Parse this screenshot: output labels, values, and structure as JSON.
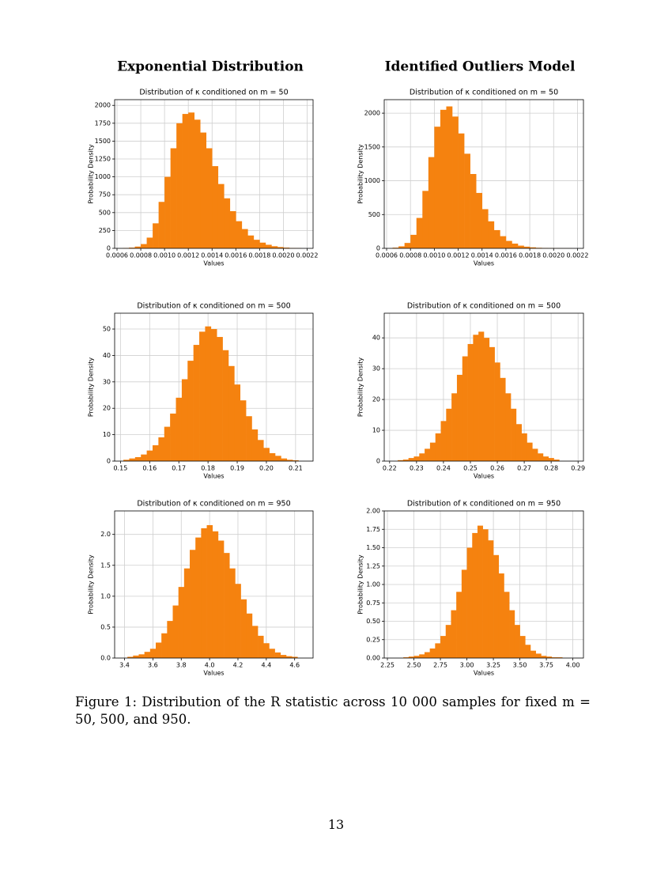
{
  "headings": [
    "Exponential Distribution",
    "Identified Outliers Model"
  ],
  "chart_data": [
    {
      "type": "histogram",
      "title": "Distribution of κ conditioned on m = 50",
      "x_label": "Values",
      "y_label": "Probability Density",
      "color": "#f5820f",
      "grid": true,
      "bins": [
        0.00065,
        0.0007,
        0.00075,
        0.0008,
        0.00085,
        0.0009,
        0.00095,
        0.001,
        0.00105,
        0.0011,
        0.00115,
        0.0012,
        0.00125,
        0.0013,
        0.00135,
        0.0014,
        0.00145,
        0.0015,
        0.00155,
        0.0016,
        0.00165,
        0.0017,
        0.00175,
        0.0018,
        0.00185,
        0.0019,
        0.00195,
        0.002,
        0.00205,
        0.0021,
        0.00215
      ],
      "values": [
        5,
        10,
        25,
        60,
        150,
        350,
        650,
        1000,
        1400,
        1750,
        1880,
        1900,
        1800,
        1620,
        1400,
        1150,
        900,
        700,
        520,
        380,
        270,
        180,
        120,
        80,
        50,
        30,
        18,
        10,
        5,
        3
      ],
      "xlim": [
        0.00058,
        0.00225
      ],
      "ylim": [
        0,
        2080
      ],
      "xticks": [
        0.0006,
        0.0008,
        {
          "value": 0.001,
          "label": "0.0010"
        },
        0.0012,
        0.0014,
        0.0016,
        0.0018,
        {
          "value": 0.002,
          "label": "0.0020"
        },
        0.0022
      ],
      "yticks": [
        0,
        250,
        500,
        750,
        1000,
        1250,
        1500,
        1750,
        2000
      ]
    },
    {
      "type": "histogram",
      "title": "Distribution of κ conditioned on m = 50",
      "x_label": "Values",
      "y_label": "Probability Density",
      "color": "#f5820f",
      "grid": true,
      "bins": [
        0.00065,
        0.0007,
        0.00075,
        0.0008,
        0.00085,
        0.0009,
        0.00095,
        0.001,
        0.00105,
        0.0011,
        0.00115,
        0.0012,
        0.00125,
        0.0013,
        0.00135,
        0.0014,
        0.00145,
        0.0015,
        0.00155,
        0.0016,
        0.00165,
        0.0017,
        0.00175,
        0.0018,
        0.00185,
        0.0019,
        0.00195,
        0.002,
        0.00205,
        0.0021,
        0.00215
      ],
      "values": [
        10,
        30,
        80,
        200,
        450,
        850,
        1350,
        1800,
        2050,
        2100,
        1950,
        1700,
        1400,
        1100,
        820,
        580,
        400,
        270,
        180,
        110,
        70,
        40,
        25,
        15,
        8,
        5,
        3,
        2,
        1,
        1
      ],
      "xlim": [
        0.00058,
        0.00225
      ],
      "ylim": [
        0,
        2200
      ],
      "xticks": [
        0.0006,
        0.0008,
        {
          "value": 0.001,
          "label": "0.0010"
        },
        0.0012,
        0.0014,
        0.0016,
        0.0018,
        {
          "value": 0.002,
          "label": "0.0020"
        },
        0.0022
      ],
      "yticks": [
        0,
        500,
        1000,
        1500,
        2000
      ]
    },
    {
      "type": "histogram",
      "title": "Distribution of κ conditioned on m = 500",
      "x_label": "Values",
      "y_label": "Probability Density",
      "color": "#f5820f",
      "grid": true,
      "bins": [
        0.151,
        0.153,
        0.155,
        0.157,
        0.159,
        0.161,
        0.163,
        0.165,
        0.167,
        0.169,
        0.171,
        0.173,
        0.175,
        0.177,
        0.179,
        0.181,
        0.183,
        0.185,
        0.187,
        0.189,
        0.191,
        0.193,
        0.195,
        0.197,
        0.199,
        0.201,
        0.203,
        0.205,
        0.207,
        0.209,
        0.211
      ],
      "values": [
        0.5,
        1,
        1.5,
        2.5,
        4,
        6,
        9,
        13,
        18,
        24,
        31,
        38,
        44,
        49,
        51,
        50,
        47,
        42,
        36,
        29,
        23,
        17,
        12,
        8,
        5,
        3,
        2,
        1,
        0.5,
        0.3
      ],
      "xlim": [
        0.148,
        0.216
      ],
      "ylim": [
        0,
        56
      ],
      "xticks": [
        0.15,
        0.16,
        0.17,
        0.18,
        0.19,
        {
          "value": 0.2,
          "label": "0.20"
        },
        0.21
      ],
      "yticks": [
        0,
        10,
        20,
        30,
        40,
        50
      ]
    },
    {
      "type": "histogram",
      "title": "Distribution of κ conditioned on m = 500",
      "x_label": "Values",
      "y_label": "Probability Density",
      "color": "#f5820f",
      "grid": true,
      "bins": [
        0.223,
        0.225,
        0.227,
        0.229,
        0.231,
        0.233,
        0.235,
        0.237,
        0.239,
        0.241,
        0.243,
        0.245,
        0.247,
        0.249,
        0.251,
        0.253,
        0.255,
        0.257,
        0.259,
        0.261,
        0.263,
        0.265,
        0.267,
        0.269,
        0.271,
        0.273,
        0.275,
        0.277,
        0.279,
        0.281,
        0.283
      ],
      "values": [
        0.3,
        0.5,
        1,
        1.5,
        2.5,
        4,
        6,
        9,
        13,
        17,
        22,
        28,
        34,
        38,
        41,
        42,
        40,
        37,
        32,
        27,
        22,
        17,
        12,
        9,
        6,
        4,
        2.5,
        1.5,
        1,
        0.5
      ],
      "xlim": [
        0.218,
        0.292
      ],
      "ylim": [
        0,
        48
      ],
      "xticks": [
        0.22,
        0.23,
        0.24,
        0.25,
        0.26,
        0.27,
        0.28,
        0.29
      ],
      "yticks": [
        0,
        10,
        20,
        30,
        40
      ]
    },
    {
      "type": "histogram",
      "title": "Distribution of κ conditioned on m = 950",
      "x_label": "Values",
      "y_label": "Probability Density",
      "color": "#f5820f",
      "grid": true,
      "bins": [
        3.42,
        3.46,
        3.5,
        3.54,
        3.58,
        3.62,
        3.66,
        3.7,
        3.74,
        3.78,
        3.82,
        3.86,
        3.9,
        3.94,
        3.98,
        4.02,
        4.06,
        4.1,
        4.14,
        4.18,
        4.22,
        4.26,
        4.3,
        4.34,
        4.38,
        4.42,
        4.46,
        4.5,
        4.54,
        4.58,
        4.62
      ],
      "values": [
        0.02,
        0.04,
        0.06,
        0.1,
        0.15,
        0.25,
        0.4,
        0.6,
        0.85,
        1.15,
        1.45,
        1.75,
        1.95,
        2.1,
        2.15,
        2.05,
        1.9,
        1.7,
        1.45,
        1.2,
        0.95,
        0.72,
        0.52,
        0.36,
        0.24,
        0.15,
        0.09,
        0.05,
        0.03,
        0.02
      ],
      "xlim": [
        3.33,
        4.73
      ],
      "ylim": [
        0,
        2.38
      ],
      "xticks": [
        3.4,
        3.6,
        3.8,
        {
          "value": 4,
          "label": "4.0"
        },
        4.2,
        4.4,
        4.6
      ],
      "yticks": [
        {
          "value": 0,
          "label": "0.0"
        },
        0.5,
        {
          "value": 1,
          "label": "1.0"
        },
        1.5,
        {
          "value": 2,
          "label": "2.0"
        }
      ]
    },
    {
      "type": "histogram",
      "title": "Distribution of κ conditioned on m = 950",
      "x_label": "Values",
      "y_label": "Probability Density",
      "color": "#f5820f",
      "grid": true,
      "bins": [
        2.4,
        2.45,
        2.5,
        2.55,
        2.6,
        2.65,
        2.7,
        2.75,
        2.8,
        2.85,
        2.9,
        2.95,
        3,
        3.05,
        3.1,
        3.15,
        3.2,
        3.25,
        3.3,
        3.35,
        3.4,
        3.45,
        3.5,
        3.55,
        3.6,
        3.65,
        3.7,
        3.75,
        3.8,
        3.85,
        3.9
      ],
      "values": [
        0.01,
        0.02,
        0.03,
        0.05,
        0.08,
        0.13,
        0.2,
        0.3,
        0.45,
        0.65,
        0.9,
        1.2,
        1.5,
        1.7,
        1.8,
        1.75,
        1.6,
        1.4,
        1.15,
        0.9,
        0.65,
        0.45,
        0.3,
        0.18,
        0.1,
        0.06,
        0.03,
        0.02,
        0.01,
        0.01
      ],
      "xlim": [
        2.22,
        4.1
      ],
      "ylim": [
        0,
        2
      ],
      "xticks": [
        {
          "value": 2.25,
          "label": "2.25"
        },
        {
          "value": 2.5,
          "label": "2.50"
        },
        {
          "value": 2.75,
          "label": "2.75"
        },
        {
          "value": 3,
          "label": "3.00"
        },
        {
          "value": 3.25,
          "label": "3.25"
        },
        {
          "value": 3.5,
          "label": "3.50"
        },
        {
          "value": 3.75,
          "label": "3.75"
        },
        {
          "value": 4,
          "label": "4.00"
        }
      ],
      "yticks": [
        {
          "value": 0,
          "label": "0.00"
        },
        0.25,
        {
          "value": 0.5,
          "label": "0.50"
        },
        0.75,
        {
          "value": 1,
          "label": "1.00"
        },
        1.25,
        {
          "value": 1.5,
          "label": "1.50"
        },
        1.75,
        {
          "value": 2,
          "label": "2.00"
        }
      ]
    }
  ],
  "caption": "Figure 1: Distribution of the R statistic across 10 000 samples for fixed m = 50, 500, and 950.",
  "page_number": "13"
}
